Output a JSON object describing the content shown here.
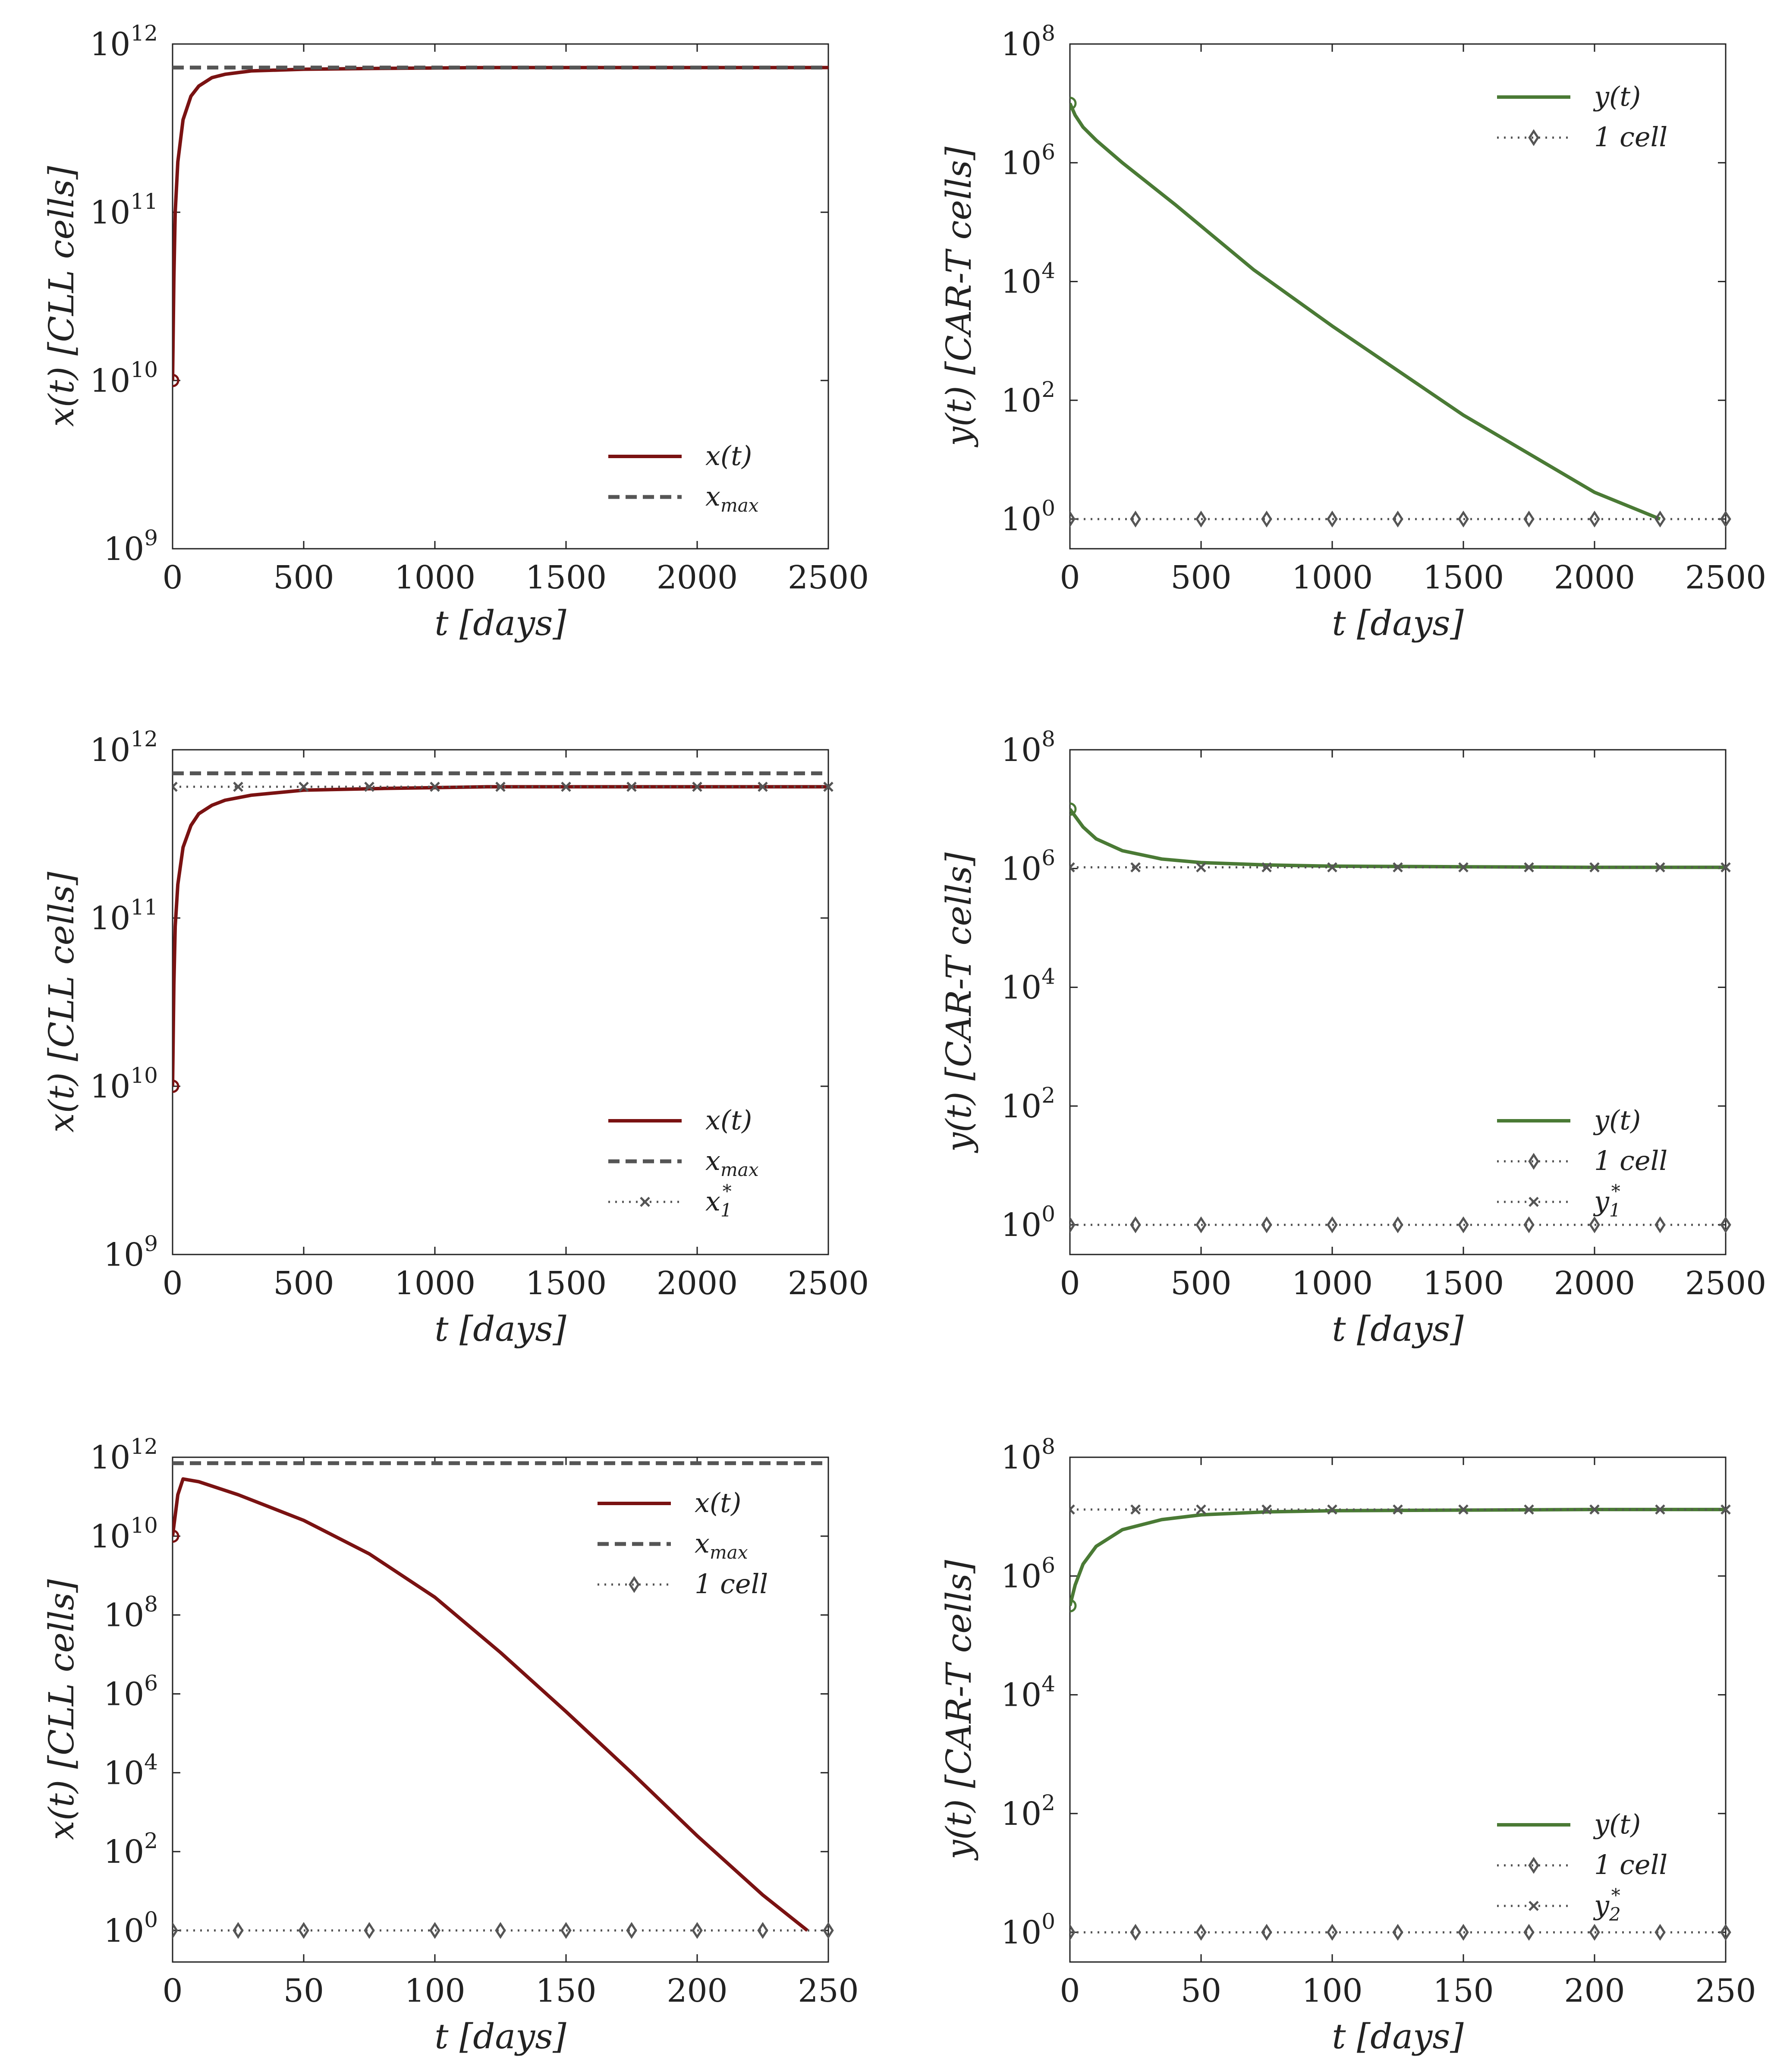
{
  "colors": {
    "cll": "#7a1212",
    "cart": "#4a7a35",
    "ref": "#555555",
    "axis": "#222222"
  },
  "chart_data": [
    {
      "id": "p1",
      "type": "line",
      "scale": "log",
      "xlabel": "t [days]",
      "ylabel": "x(t) [CLL cells]",
      "xlim": [
        0,
        2500
      ],
      "xticks": [
        "0",
        "500",
        "1000",
        "1500",
        "2000",
        "2500"
      ],
      "ylim_exp": [
        9,
        12
      ],
      "yticks_exp": [
        "9",
        "10",
        "11",
        "12"
      ],
      "series": [
        {
          "name": "x(t)",
          "kind": "solid",
          "color": "#7a1212",
          "x": [
            0,
            5,
            10,
            20,
            40,
            70,
            100,
            150,
            200,
            300,
            500,
            800,
            1200,
            1800,
            2500
          ],
          "y": [
            10,
            10.6,
            11.0,
            11.3,
            11.55,
            11.69,
            11.75,
            11.8,
            11.82,
            11.84,
            11.85,
            11.855,
            11.86,
            11.86,
            11.86
          ]
        },
        {
          "name": "x_max",
          "kind": "dashed",
          "color": "#555555",
          "x": [
            0,
            2500
          ],
          "y": [
            11.86,
            11.86
          ]
        }
      ],
      "legend": [
        {
          "label": "x(t)",
          "kind": "solid",
          "color": "#7a1212"
        },
        {
          "label": "x",
          "sub": "max",
          "kind": "dashed",
          "color": "#555555"
        }
      ]
    },
    {
      "id": "p2",
      "type": "line",
      "scale": "log",
      "xlabel": "t [days]",
      "ylabel": "y(t) [CAR-T cells]",
      "xlim": [
        0,
        2500
      ],
      "xticks": [
        "0",
        "500",
        "1000",
        "1500",
        "2000",
        "2500"
      ],
      "ylim_exp": [
        -0.5,
        8
      ],
      "yticks_exp": [
        "0",
        "2",
        "4",
        "6",
        "8"
      ],
      "series": [
        {
          "name": "y(t)",
          "kind": "solid",
          "color": "#4a7a35",
          "x": [
            0,
            20,
            50,
            100,
            200,
            400,
            700,
            1000,
            1500,
            2000,
            2250
          ],
          "y": [
            7.0,
            6.8,
            6.6,
            6.38,
            6.0,
            5.3,
            4.2,
            3.25,
            1.75,
            0.45,
            0.0
          ]
        },
        {
          "name": "1 cell",
          "kind": "dotted-diamond",
          "color": "#555555",
          "x": [
            0,
            2500
          ],
          "y": [
            0,
            0
          ],
          "marker_step": 250
        }
      ],
      "legend": [
        {
          "label": "y(t)",
          "kind": "solid",
          "color": "#4a7a35"
        },
        {
          "label": "1 cell",
          "kind": "dotted-diamond",
          "color": "#555555"
        }
      ]
    },
    {
      "id": "p3",
      "type": "line",
      "scale": "log",
      "xlabel": "t [days]",
      "ylabel": "x(t) [CLL cells]",
      "xlim": [
        0,
        2500
      ],
      "xticks": [
        "0",
        "500",
        "1000",
        "1500",
        "2000",
        "2500"
      ],
      "ylim_exp": [
        9,
        12
      ],
      "yticks_exp": [
        "9",
        "10",
        "11",
        "12"
      ],
      "series": [
        {
          "name": "x(t)",
          "kind": "solid",
          "color": "#7a1212",
          "x": [
            0,
            5,
            10,
            20,
            40,
            70,
            100,
            150,
            200,
            300,
            500,
            800,
            1200,
            1800,
            2500
          ],
          "y": [
            10,
            10.6,
            10.95,
            11.2,
            11.42,
            11.55,
            11.62,
            11.67,
            11.7,
            11.73,
            11.76,
            11.77,
            11.78,
            11.78,
            11.78
          ]
        },
        {
          "name": "x_max",
          "kind": "dashed",
          "color": "#555555",
          "x": [
            0,
            2500
          ],
          "y": [
            11.86,
            11.86
          ]
        },
        {
          "name": "x1*",
          "kind": "dotted-x",
          "color": "#555555",
          "x": [
            0,
            2500
          ],
          "y": [
            11.78,
            11.78
          ],
          "marker_step": 250
        }
      ],
      "legend": [
        {
          "label": "x(t)",
          "kind": "solid",
          "color": "#7a1212"
        },
        {
          "label": "x",
          "sub": "max",
          "kind": "dashed",
          "color": "#555555"
        },
        {
          "label": "x",
          "sub": "1",
          "sup": "*",
          "kind": "dotted-x",
          "color": "#555555"
        }
      ]
    },
    {
      "id": "p4",
      "type": "line",
      "scale": "log",
      "xlabel": "t [days]",
      "ylabel": "y(t) [CAR-T cells]",
      "xlim": [
        0,
        2500
      ],
      "xticks": [
        "0",
        "500",
        "1000",
        "1500",
        "2000",
        "2500"
      ],
      "ylim_exp": [
        -0.5,
        8
      ],
      "yticks_exp": [
        "0",
        "2",
        "4",
        "6",
        "8"
      ],
      "series": [
        {
          "name": "y(t)",
          "kind": "solid",
          "color": "#4a7a35",
          "x": [
            0,
            50,
            100,
            200,
            350,
            500,
            750,
            1000,
            1500,
            2000,
            2500
          ],
          "y": [
            7.0,
            6.7,
            6.5,
            6.3,
            6.16,
            6.1,
            6.06,
            6.04,
            6.03,
            6.02,
            6.02
          ]
        },
        {
          "name": "1 cell",
          "kind": "dotted-diamond",
          "color": "#555555",
          "x": [
            0,
            2500
          ],
          "y": [
            0,
            0
          ],
          "marker_step": 250
        },
        {
          "name": "y1*",
          "kind": "dotted-x",
          "color": "#555555",
          "x": [
            0,
            2500
          ],
          "y": [
            6.02,
            6.02
          ],
          "marker_step": 250
        }
      ],
      "legend": [
        {
          "label": "y(t)",
          "kind": "solid",
          "color": "#4a7a35"
        },
        {
          "label": "1 cell",
          "kind": "dotted-diamond",
          "color": "#555555"
        },
        {
          "label": "y",
          "sub": "1",
          "sup": "*",
          "kind": "dotted-x",
          "color": "#555555"
        }
      ]
    },
    {
      "id": "p5",
      "type": "line",
      "scale": "log",
      "xlabel": "t [days]",
      "ylabel": "x(t) [CLL cells]",
      "xlim": [
        0,
        250
      ],
      "xticks": [
        "0",
        "50",
        "100",
        "150",
        "200",
        "250"
      ],
      "ylim_exp": [
        -0.8,
        12
      ],
      "yticks_exp": [
        "0",
        "2",
        "4",
        "6",
        "8",
        "10",
        "12"
      ],
      "series": [
        {
          "name": "x(t)",
          "kind": "solid",
          "color": "#7a1212",
          "x": [
            0,
            2,
            4,
            10,
            25,
            50,
            75,
            100,
            125,
            150,
            175,
            200,
            225,
            242
          ],
          "y": [
            10,
            11.05,
            11.45,
            11.38,
            11.05,
            10.4,
            9.55,
            8.45,
            7.05,
            5.55,
            4.0,
            2.4,
            0.9,
            0.0
          ]
        },
        {
          "name": "x_max",
          "kind": "dashed",
          "color": "#555555",
          "x": [
            0,
            250
          ],
          "y": [
            11.85,
            11.85
          ]
        },
        {
          "name": "1 cell",
          "kind": "dotted-diamond",
          "color": "#555555",
          "x": [
            0,
            250
          ],
          "y": [
            0,
            0
          ],
          "marker_step": 25
        }
      ],
      "legend": [
        {
          "label": "x(t)",
          "kind": "solid",
          "color": "#7a1212"
        },
        {
          "label": "x",
          "sub": "max",
          "kind": "dashed",
          "color": "#555555"
        },
        {
          "label": "1 cell",
          "kind": "dotted-diamond",
          "color": "#555555"
        }
      ]
    },
    {
      "id": "p6",
      "type": "line",
      "scale": "log",
      "xlabel": "t [days]",
      "ylabel": "y(t) [CAR-T cells]",
      "xlim": [
        0,
        250
      ],
      "xticks": [
        "0",
        "50",
        "100",
        "150",
        "200",
        "250"
      ],
      "ylim_exp": [
        -0.5,
        8
      ],
      "yticks_exp": [
        "0",
        "2",
        "4",
        "6",
        "8"
      ],
      "series": [
        {
          "name": "y(t)",
          "kind": "solid",
          "color": "#4a7a35",
          "x": [
            0,
            2,
            5,
            10,
            20,
            35,
            50,
            75,
            100,
            150,
            200,
            250
          ],
          "y": [
            5.5,
            5.85,
            6.2,
            6.5,
            6.78,
            6.95,
            7.03,
            7.08,
            7.1,
            7.11,
            7.12,
            7.12
          ]
        },
        {
          "name": "1 cell",
          "kind": "dotted-diamond",
          "color": "#555555",
          "x": [
            0,
            250
          ],
          "y": [
            0,
            0
          ],
          "marker_step": 25
        },
        {
          "name": "y2*",
          "kind": "dotted-x",
          "color": "#555555",
          "x": [
            0,
            250
          ],
          "y": [
            7.12,
            7.12
          ],
          "marker_step": 25
        }
      ],
      "legend": [
        {
          "label": "y(t)",
          "kind": "solid",
          "color": "#4a7a35"
        },
        {
          "label": "1 cell",
          "kind": "dotted-diamond",
          "color": "#555555"
        },
        {
          "label": "y",
          "sub": "2",
          "sup": "*",
          "kind": "dotted-x",
          "color": "#555555"
        }
      ]
    }
  ]
}
